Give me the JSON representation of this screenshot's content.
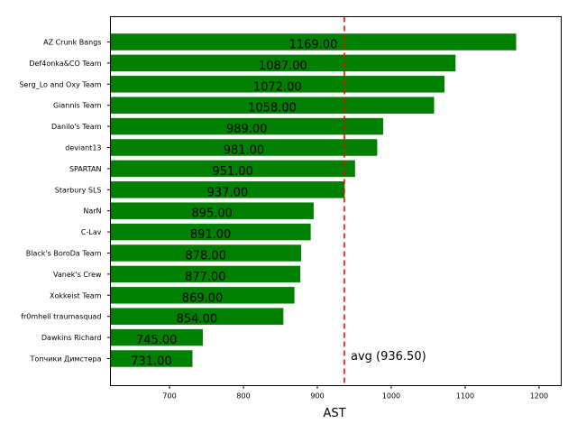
{
  "chart_data": {
    "type": "bar",
    "orientation": "horizontal",
    "title": "",
    "xlabel": "AST",
    "ylabel": "",
    "xlim": [
      620,
      1230
    ],
    "xticks": [
      700,
      800,
      900,
      1000,
      1100,
      1200
    ],
    "bar_color": "#008000",
    "categories": [
      "AZ Crunk Bangs",
      "Def4onka&CO Team",
      "Serg_Lo and Oxy Team",
      "Giannis Team",
      "Danilo's Team",
      "deviant13",
      "SPARTAN",
      "Starbury SLS",
      "NarN",
      "C-Lav",
      "Black's BoroDa Team",
      "Vanek's Crew",
      "Xokkeist Team",
      "fr0mhell traumasquad",
      "Dawkins Richard",
      "Топчики Димстера"
    ],
    "values": [
      1169,
      1087,
      1072,
      1058,
      989,
      981,
      951,
      937,
      895,
      891,
      878,
      877,
      869,
      854,
      745,
      731
    ],
    "value_labels": [
      "1169.00",
      "1087.00",
      "1072.00",
      "1058.00",
      "989.00",
      "981.00",
      "951.00",
      "937.00",
      "895.00",
      "891.00",
      "878.00",
      "877.00",
      "869.00",
      "854.00",
      "745.00",
      "731.00"
    ],
    "average": {
      "value": 936.5,
      "label": "avg (936.50)",
      "color": "#ff0000",
      "style": "dashed"
    }
  }
}
